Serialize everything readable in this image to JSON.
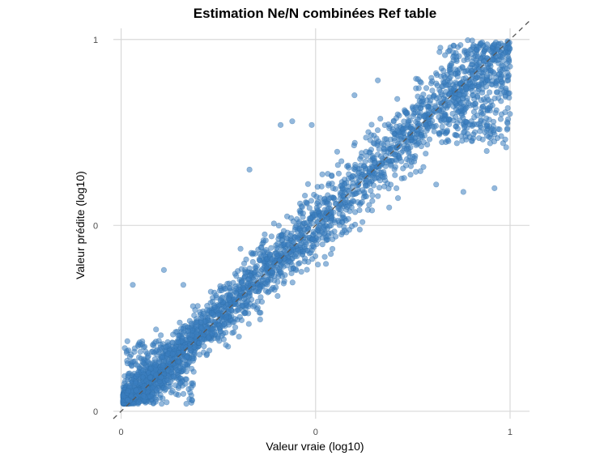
{
  "chart_data": {
    "type": "scatter",
    "title": "Estimation Ne/N combinées Ref table",
    "xlabel": "Valeur vraie (log10)",
    "ylabel": "Valeur prédite (log10)",
    "xlim": [
      -0.02,
      1.05
    ],
    "ylim": [
      -0.02,
      1.03
    ],
    "x_ticks": [
      0,
      0.5,
      1
    ],
    "x_tick_labels": [
      "0",
      "0",
      "1"
    ],
    "y_ticks": [
      0,
      0.5,
      1
    ],
    "y_tick_labels": [
      "0",
      "0",
      "1"
    ],
    "grid": true,
    "legend": "none",
    "reference_line": {
      "style": "dashed",
      "slope": 1,
      "intercept": 0,
      "color": "#555555"
    },
    "point_color": "#3a7ebf",
    "point_opacity": 0.55,
    "cloud_description_points": [
      {
        "x": 0.02,
        "y": 0.05
      },
      {
        "x": 0.05,
        "y": 0.08
      },
      {
        "x": 0.1,
        "y": 0.1
      },
      {
        "x": 0.15,
        "y": 0.16
      },
      {
        "x": 0.2,
        "y": 0.2
      },
      {
        "x": 0.3,
        "y": 0.29
      },
      {
        "x": 0.4,
        "y": 0.4
      },
      {
        "x": 0.5,
        "y": 0.5
      },
      {
        "x": 0.6,
        "y": 0.6
      },
      {
        "x": 0.7,
        "y": 0.7
      },
      {
        "x": 0.8,
        "y": 0.8
      },
      {
        "x": 0.9,
        "y": 0.88
      },
      {
        "x": 0.98,
        "y": 0.95
      }
    ],
    "outliers": [
      {
        "x": 0.03,
        "y": 0.34
      },
      {
        "x": 0.11,
        "y": 0.38
      },
      {
        "x": 0.16,
        "y": 0.34
      },
      {
        "x": 0.33,
        "y": 0.65
      },
      {
        "x": 0.41,
        "y": 0.77
      },
      {
        "x": 0.44,
        "y": 0.78
      },
      {
        "x": 0.49,
        "y": 0.77
      },
      {
        "x": 0.6,
        "y": 0.85
      },
      {
        "x": 0.66,
        "y": 0.89
      },
      {
        "x": 0.71,
        "y": 0.84
      },
      {
        "x": 0.81,
        "y": 0.61
      },
      {
        "x": 0.88,
        "y": 0.59
      },
      {
        "x": 0.96,
        "y": 0.6
      },
      {
        "x": 0.99,
        "y": 0.71
      },
      {
        "x": 0.94,
        "y": 0.7
      }
    ]
  }
}
